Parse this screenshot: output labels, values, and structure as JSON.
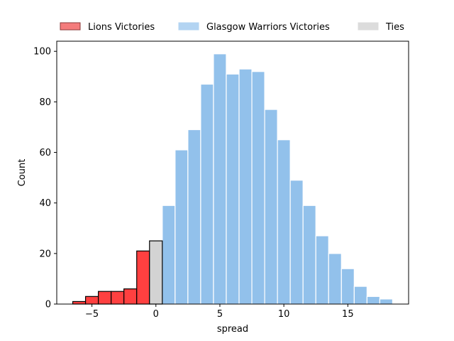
{
  "chart_data": {
    "type": "bar",
    "xlabel": "spread",
    "ylabel": "Count",
    "xlim": [
      -7.75,
      19.75
    ],
    "ylim": [
      0,
      104
    ],
    "x_ticks": [
      -5,
      0,
      5,
      10,
      15
    ],
    "x_tick_labels": [
      "−5",
      "0",
      "5",
      "10",
      "15"
    ],
    "y_ticks": [
      0,
      20,
      40,
      60,
      80,
      100
    ],
    "y_tick_labels": [
      "0",
      "20",
      "40",
      "60",
      "80",
      "100"
    ],
    "bin_width": 1,
    "grid": false,
    "legend_position": "top, above plot",
    "series": [
      {
        "name": "Lions Victories",
        "fill": "#ff4040",
        "edge": "#000000",
        "legend_fill": "#f47c7c",
        "legend_edge": "#8b3a3a",
        "bins": [
          {
            "x": -6,
            "count": 1
          },
          {
            "x": -5,
            "count": 3
          },
          {
            "x": -4,
            "count": 5
          },
          {
            "x": -3,
            "count": 5
          },
          {
            "x": -2,
            "count": 6
          },
          {
            "x": -1,
            "count": 21
          }
        ]
      },
      {
        "name": "Glasgow Warriors Victories",
        "fill": "#92c1eb",
        "edge": "#ffffff",
        "legend_fill": "#b3d4f2",
        "legend_edge": "#b3d4f2",
        "bins": [
          {
            "x": 1,
            "count": 39
          },
          {
            "x": 2,
            "count": 61
          },
          {
            "x": 3,
            "count": 69
          },
          {
            "x": 4,
            "count": 87
          },
          {
            "x": 5,
            "count": 99
          },
          {
            "x": 6,
            "count": 91
          },
          {
            "x": 7,
            "count": 93
          },
          {
            "x": 8,
            "count": 92
          },
          {
            "x": 9,
            "count": 77
          },
          {
            "x": 10,
            "count": 65
          },
          {
            "x": 11,
            "count": 49
          },
          {
            "x": 12,
            "count": 39
          },
          {
            "x": 13,
            "count": 27
          },
          {
            "x": 14,
            "count": 20
          },
          {
            "x": 15,
            "count": 14
          },
          {
            "x": 16,
            "count": 7
          },
          {
            "x": 17,
            "count": 3
          },
          {
            "x": 18,
            "count": 2
          }
        ]
      },
      {
        "name": "Ties",
        "fill": "#d3d3d3",
        "edge": "#000000",
        "legend_fill": "#dcdcdc",
        "legend_edge": "#dcdcdc",
        "bins": [
          {
            "x": 0,
            "count": 25
          }
        ]
      }
    ]
  }
}
